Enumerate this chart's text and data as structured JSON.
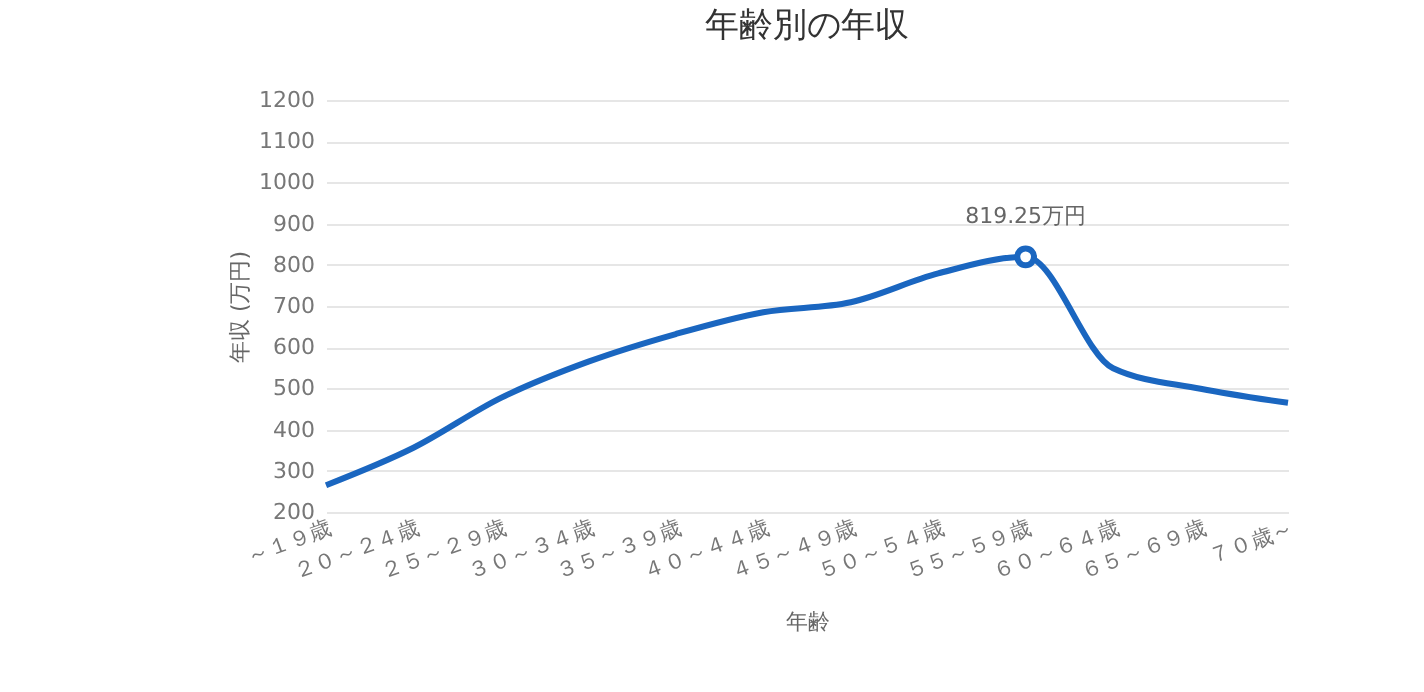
{
  "chart_data": {
    "type": "line",
    "title": "年齢別の年収",
    "xlabel": "年齢",
    "ylabel": "年収 (万円)",
    "categories": [
      "～１９歳",
      "２０～２４歳",
      "２５～２９歳",
      "３０～３４歳",
      "３５～３９歳",
      "４０～４４歳",
      "４５～４９歳",
      "５０～５４歳",
      "５５～５９歳",
      "６０～６４歳",
      "６５～６９歳",
      "７０歳～"
    ],
    "series": [
      {
        "color": "#1a66c0",
        "values": [
          265,
          356,
          477,
          565,
          632,
          685,
          709,
          779,
          819.25,
          549,
          499,
          465
        ],
        "value_labels": [
          null,
          null,
          null,
          null,
          null,
          null,
          null,
          null,
          "819.25万円",
          null,
          null,
          null
        ]
      }
    ],
    "ylim": [
      200,
      1200
    ],
    "yticks": [
      200,
      300,
      400,
      500,
      600,
      700,
      800,
      900,
      1000,
      1100,
      1200
    ],
    "grid": "y"
  }
}
